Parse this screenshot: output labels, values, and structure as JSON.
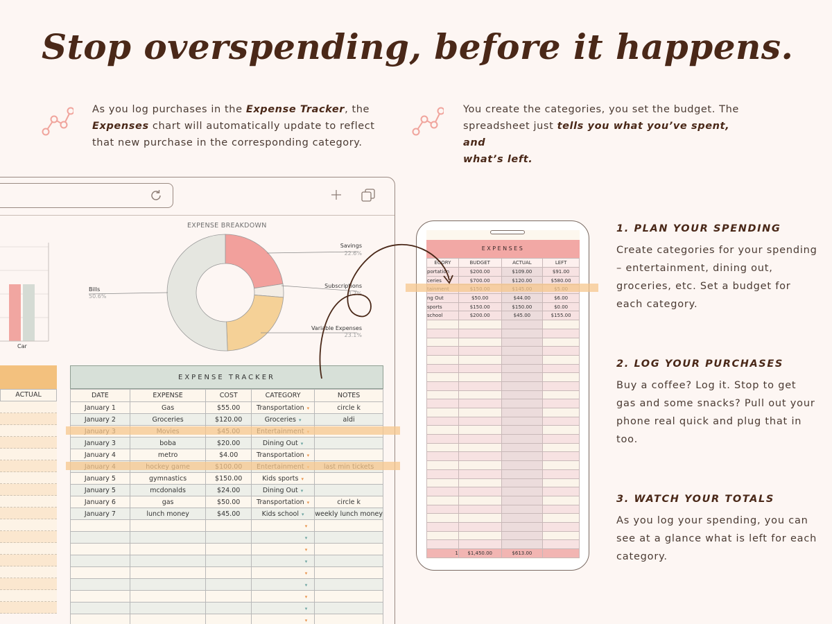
{
  "headline": "Stop overspending, before it happens.",
  "intro_left": {
    "p1": "As you log purchases in the ",
    "b1": "Expense Tracker",
    "p2": ", the",
    "b2": "Expenses",
    "p3": " chart will automatically update to reflect",
    "p4": "that new purchase in the corresponding category."
  },
  "intro_right": {
    "p1": "You create the categories, you set the budget. The",
    "p2": "spreadsheet just ",
    "b1": "tells you what you’ve spent, and",
    "b2": "what’s left."
  },
  "icons": {
    "intro": "trend-line-icon",
    "reload": "refresh-icon",
    "new_tab": "plus-icon",
    "tabs": "copy-icon"
  },
  "colors": {
    "accent": "#f2a8a5",
    "highlight": "#f6c78e",
    "tracker_header": "#d7e0d8",
    "heading": "#4a2818"
  },
  "expense_chart": {
    "title": "EXPENSE BREAKDOWN",
    "bar_label": "Car",
    "chart_data": {
      "type": "pie",
      "categories": [
        "Savings",
        "Subscriptions",
        "Variable Expenses",
        "Bills"
      ],
      "values": [
        22.6,
        3.7,
        23.1,
        50.6
      ],
      "labels_pct": [
        "22.6%",
        "3.7%",
        "23.1%",
        "50.6%"
      ],
      "colors": [
        "#f2a09c",
        "#f3ede6",
        "#f5d197",
        "#e5e6e0"
      ]
    }
  },
  "left_table": {
    "col": "ACTUAL"
  },
  "tracker": {
    "title": "EXPENSE TRACKER",
    "columns": [
      "DATE",
      "EXPENSE",
      "COST",
      "CATEGORY",
      "NOTES"
    ],
    "rows": [
      [
        "January 1",
        "Gas",
        "$55.00",
        "Transportation",
        "circle k"
      ],
      [
        "January 2",
        "Groceries",
        "$120.00",
        "Groceries",
        "aldi"
      ],
      [
        "January 3",
        "Movies",
        "$45.00",
        "Entertainment",
        ""
      ],
      [
        "January 3",
        "boba",
        "$20.00",
        "Dining Out",
        ""
      ],
      [
        "January 4",
        "metro",
        "$4.00",
        "Transportation",
        ""
      ],
      [
        "January 4",
        "hockey game",
        "$100.00",
        "Entertainment",
        "last min tickets"
      ],
      [
        "January 5",
        "gymnastics",
        "$150.00",
        "Kids sports",
        ""
      ],
      [
        "January 5",
        "mcdonalds",
        "$24.00",
        "Dining Out",
        ""
      ],
      [
        "January 6",
        "gas",
        "$50.00",
        "Transportation",
        "circle k"
      ],
      [
        "January 7",
        "lunch money",
        "$45.00",
        "Kids school",
        "weekly lunch money"
      ]
    ],
    "empty_rows": 9
  },
  "phone": {
    "title": "EXPENSES",
    "columns": [
      "EGORY",
      "BUDGET",
      "ACTUAL",
      "LEFT"
    ],
    "rows": [
      [
        "portation",
        "$200.00",
        "$109.00",
        "$91.00"
      ],
      [
        "ceries",
        "$700.00",
        "$120.00",
        "$580.00"
      ],
      [
        "tainment",
        "$150.00",
        "$145.00",
        "$5.00"
      ],
      [
        "ng Out",
        "$50.00",
        "$44.00",
        "$6.00"
      ],
      [
        "sports",
        "$150.00",
        "$150.00",
        "$0.00"
      ],
      [
        "school",
        "$200.00",
        "$45.00",
        "$155.00"
      ]
    ],
    "empty_rows": 26,
    "totals": [
      "1",
      "$1,450.00",
      "$613.00",
      ""
    ]
  },
  "steps": [
    {
      "title": "1. PLAN YOUR SPENDING",
      "body": "Create categories for your spending – entertainment, dining out, groceries, etc. Set a budget for each category."
    },
    {
      "title": "2. LOG YOUR PURCHASES",
      "body": "Buy a coffee? Log it. Stop to get gas and some snacks? Pull out your phone real quick and plug that in too."
    },
    {
      "title": "3. WATCH YOUR TOTALS",
      "body": "As you log your spending, you can see at a glance what is left for each category."
    }
  ]
}
